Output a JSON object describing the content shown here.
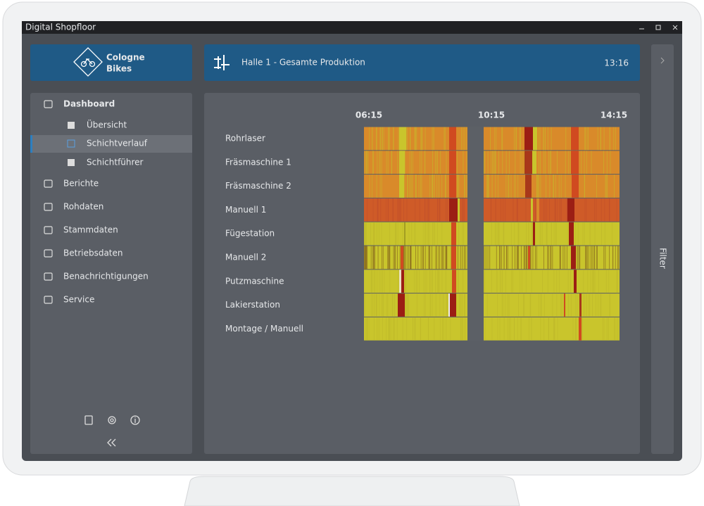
{
  "window": {
    "title": "Digital Shopfloor"
  },
  "logo": {
    "line1": "Cologne",
    "line2": "Bikes"
  },
  "header": {
    "title": "Halle 1 - Gesamte Produktion",
    "clock": "13:16"
  },
  "sidebar": {
    "items": [
      "Dashboard",
      "Berichte",
      "Rohdaten",
      "Stammdaten",
      "Betriebsdaten",
      "Benachrichtigungen",
      "Service"
    ],
    "subitems": [
      "Übersicht",
      "Schichtverlauf",
      "Schichtführer"
    ]
  },
  "filter": "Filter",
  "timeline": {
    "times": [
      "06:15",
      "10:15",
      "14:15"
    ],
    "rows": [
      "Rohrlaser",
      "Fräsmaschine 1",
      "Fräsmaschine 2",
      "Manuell 1",
      "Fügestation",
      "Manuell 2",
      "Putzmaschine",
      "Lakierstation",
      "Montage / Manuell"
    ]
  }
}
